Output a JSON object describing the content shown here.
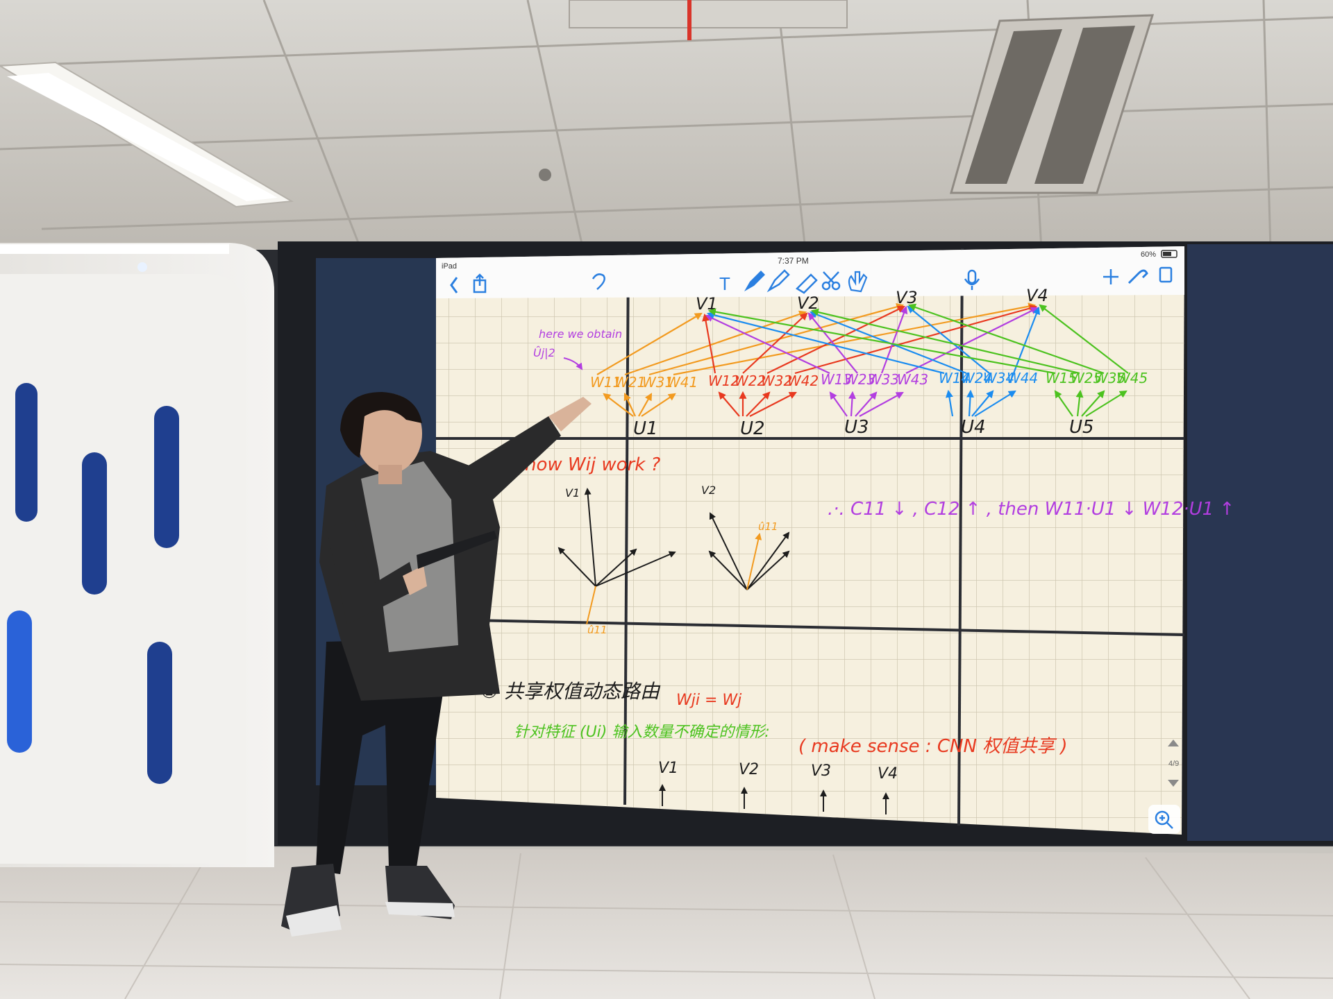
{
  "status_bar": {
    "device": "iPad",
    "time": "7:37 PM",
    "battery": "60%"
  },
  "toolbar": {
    "back_icon": "chevron-left-icon",
    "share_icon": "share-icon",
    "undo_icon": "undo-icon",
    "tools": [
      "text-tool-icon",
      "pen-icon",
      "highlighter-icon",
      "eraser-icon",
      "scissors-icon",
      "hand-tool-icon"
    ],
    "mic_icon": "microphone-icon",
    "add_icon": "plus-icon",
    "wrench_icon": "wrench-icon",
    "pages_icon": "pages-icon"
  },
  "note": {
    "annotation": [
      "here we obtain",
      "Ûj|2"
    ],
    "top_nodes": [
      "V1",
      "V2",
      "V3",
      "V4"
    ],
    "weight_groups": [
      {
        "labels": [
          "W11",
          "W21",
          "W31",
          "W41"
        ],
        "color": "#f29a1f"
      },
      {
        "labels": [
          "W12",
          "W22",
          "W32",
          "W42"
        ],
        "color": "#e8391f"
      },
      {
        "labels": [
          "W13",
          "W23",
          "W33",
          "W43"
        ],
        "color": "#b23ee0"
      },
      {
        "labels": [
          "W14",
          "W24",
          "W34",
          "W44"
        ],
        "color": "#1a8cf0"
      },
      {
        "labels": [
          "W15",
          "W25",
          "W35",
          "W45"
        ],
        "color": "#4cc21f"
      }
    ],
    "bottom_nodes": [
      "U1",
      "U2",
      "U3",
      "U4",
      "U5"
    ],
    "question": "how Wij work ?",
    "v1_label": "V1",
    "v2_label": "V2",
    "u_hat_label": "û11",
    "u_hat_label_2": "û11",
    "conclusion": ".·. C11 ↓ , C12 ↑ , then  W11·U1 ↓   W12·U1 ↑",
    "section_heading": "② 共享权值动态路由",
    "section_formula": "Wji = Wj",
    "section_note_green": "针对特征 (Ui) 输入数量不确定的情形:",
    "section_note_red": "( make sense : CNN 权值共享 )",
    "bottom_row": [
      "V1",
      "V2",
      "V3",
      "V4"
    ],
    "page_indicator": "4/9",
    "zoom_icon": "zoom-in-icon"
  },
  "colors": {
    "orange": "#f29a1f",
    "red": "#e8391f",
    "purple": "#b23ee0",
    "blue": "#1a8cf0",
    "green": "#4cc21f",
    "ink": "#1c1c1c",
    "paper": "#f6f0df"
  }
}
